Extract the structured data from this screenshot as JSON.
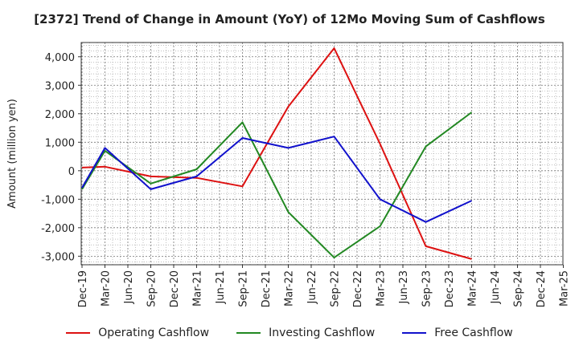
{
  "chart_data": {
    "type": "line",
    "title": "[2372]  Trend of Change in Amount (YoY) of 12Mo Moving Sum of Cashflows",
    "xlabel": "",
    "ylabel": "Amount (million yen)",
    "ylim": [
      -3300,
      4500
    ],
    "yticks": [
      4000,
      3000,
      2000,
      1000,
      0,
      -1000,
      -2000,
      -3000
    ],
    "ytick_labels": [
      "4,000",
      "3,000",
      "2,000",
      "1,000",
      "0",
      "-1,000",
      "-2,000",
      "-3,000"
    ],
    "categories": [
      "Dec-19",
      "Mar-20",
      "Jun-20",
      "Sep-20",
      "Dec-20",
      "Mar-21",
      "Jun-21",
      "Sep-21",
      "Dec-21",
      "Mar-22",
      "Jun-22",
      "Sep-22",
      "Dec-22",
      "Mar-23",
      "Jun-23",
      "Sep-23",
      "Dec-23",
      "Mar-24",
      "Jun-24",
      "Sep-24",
      "Dec-24",
      "Mar-25"
    ],
    "grid": true,
    "legend_position": "bottom",
    "series": [
      {
        "name": "Operating Cashflow",
        "color": "#dd1111",
        "values": [
          110,
          140,
          null,
          -200,
          null,
          -250,
          null,
          -550,
          null,
          2250,
          null,
          4300,
          null,
          950,
          null,
          -2650,
          null,
          -3100,
          null,
          null,
          null,
          null
        ]
      },
      {
        "name": "Investing Cashflow",
        "color": "#228822",
        "values": [
          -650,
          700,
          null,
          -450,
          null,
          50,
          null,
          1700,
          null,
          -1450,
          null,
          -3050,
          null,
          -1950,
          null,
          850,
          null,
          2050,
          null,
          null,
          null,
          null
        ]
      },
      {
        "name": "Free Cashflow",
        "color": "#1111cc",
        "values": [
          -600,
          800,
          null,
          -650,
          null,
          -200,
          null,
          1150,
          null,
          800,
          null,
          1200,
          null,
          -1000,
          null,
          -1800,
          null,
          -1050,
          null,
          null,
          null,
          null
        ]
      }
    ]
  }
}
